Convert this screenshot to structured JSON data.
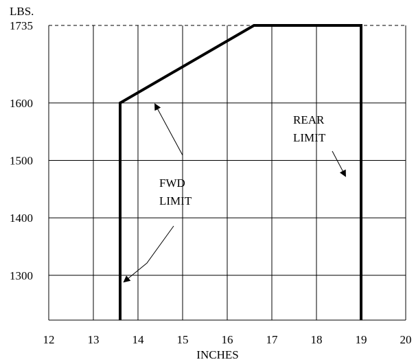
{
  "chart_data": {
    "type": "line",
    "title": "",
    "ylabel": "LBS.",
    "xlabel": "INCHES",
    "xlim": [
      12,
      20
    ],
    "ylim": [
      1222,
      1735
    ],
    "grid": true,
    "x_ticks": [
      "12",
      "13",
      "14",
      "15",
      "16",
      "17",
      "18",
      "19",
      "20"
    ],
    "y_ticks": [
      {
        "value": 1735,
        "label": "1735"
      },
      {
        "value": 1600,
        "label": "1600"
      },
      {
        "value": 1500,
        "label": "1500"
      },
      {
        "value": 1400,
        "label": "1400"
      },
      {
        "value": 1300,
        "label": "1300"
      }
    ],
    "series": [
      {
        "x": [
          13.6,
          13.6,
          16.6,
          19.0,
          19.0
        ],
        "y": [
          1222,
          1600,
          1735,
          1735,
          1222
        ],
        "color": "#000000"
      }
    ],
    "annotations": [
      {
        "text_lines": [
          "FWD",
          "LIMIT"
        ],
        "arrow_targets": [
          [
            14.35,
            1620
          ],
          [
            13.75,
            1300
          ]
        ]
      },
      {
        "text_lines": [
          "REAR",
          "LIMIT"
        ],
        "arrow_targets": [
          [
            18.85,
            1495
          ]
        ]
      }
    ]
  }
}
